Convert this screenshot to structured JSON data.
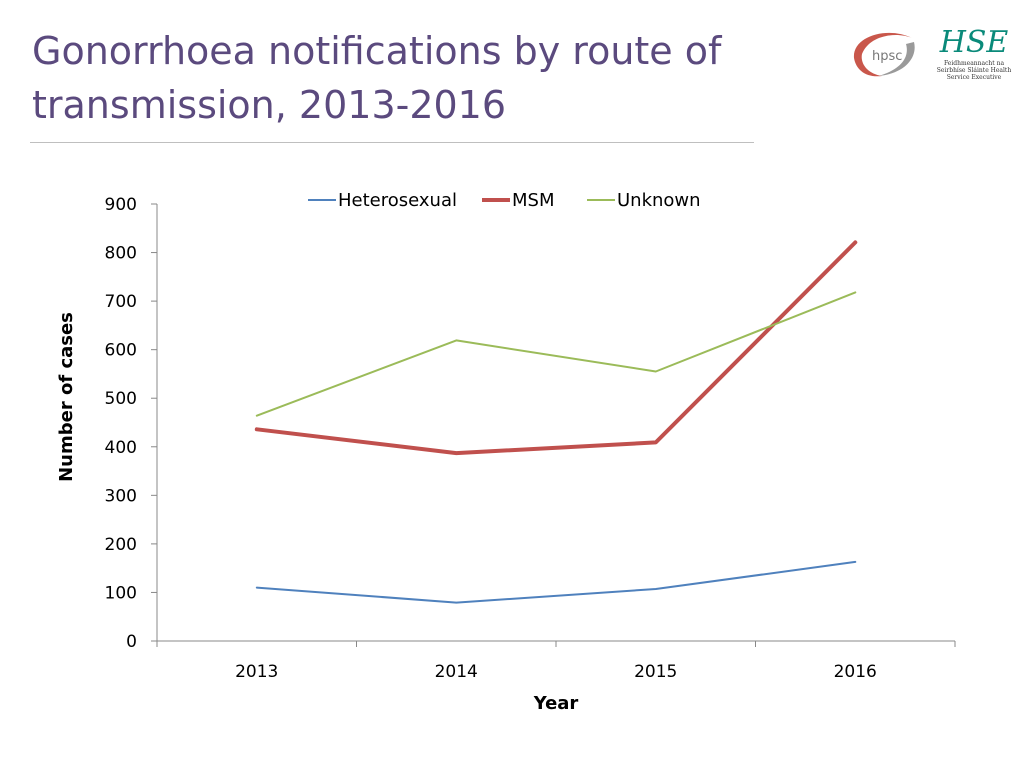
{
  "slide": {
    "title": "Gonorrhoea notifications by route of transmission, 2013-2016"
  },
  "logos": {
    "hpsc_text": "hpsc",
    "hse_text": "HSE",
    "hse_subtitle": "Feidhmeannacht na Seirbhíse Sláinte Health Service Executive",
    "hse_color": "#0a8a7a",
    "hpsc_swoosh_color": "#c0392b"
  },
  "chart_data": {
    "type": "line",
    "categories": [
      "2013",
      "2014",
      "2015",
      "2016"
    ],
    "series": [
      {
        "name": "Heterosexual",
        "values": [
          110,
          79,
          107,
          163
        ],
        "color": "#4f81bd",
        "stroke": 2
      },
      {
        "name": "MSM",
        "values": [
          436,
          387,
          409,
          821
        ],
        "color": "#c0504d",
        "stroke": 4
      },
      {
        "name": "Unknown",
        "values": [
          464,
          619,
          555,
          718
        ],
        "color": "#9bbb59",
        "stroke": 2
      }
    ],
    "yticks": [
      "0",
      "100",
      "200",
      "300",
      "400",
      "500",
      "600",
      "700",
      "800",
      "900"
    ],
    "ylim": [
      0,
      900
    ],
    "xlabel": "Year",
    "ylabel": "Number of cases",
    "grid": false,
    "legend": "top-center"
  }
}
